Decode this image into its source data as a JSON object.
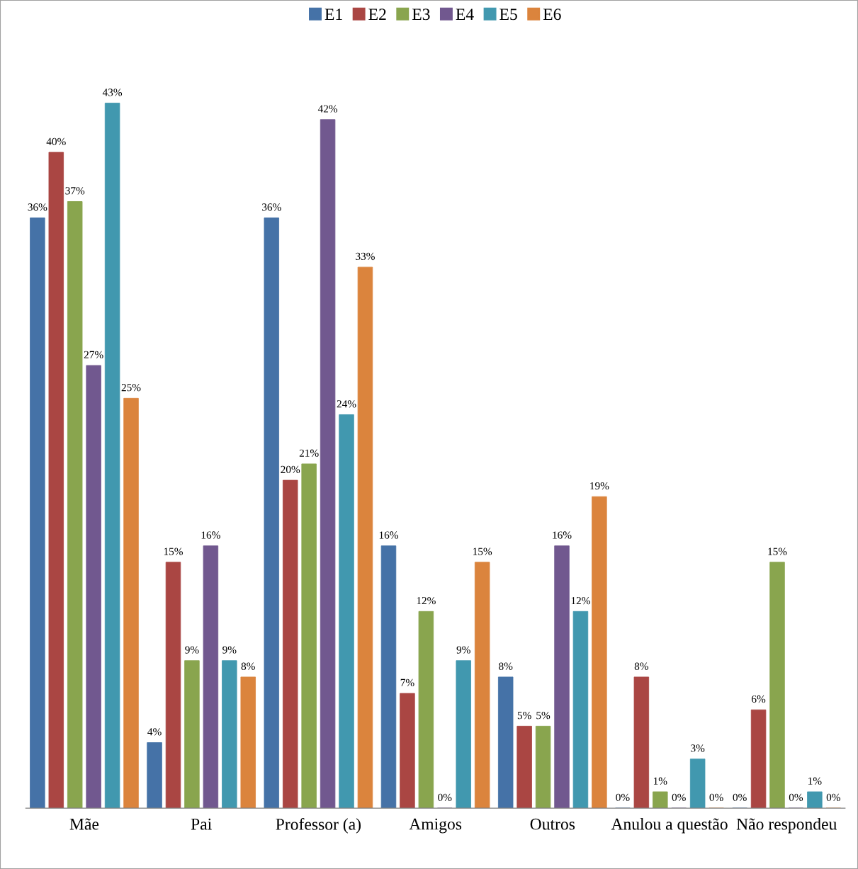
{
  "chart_data": {
    "type": "bar",
    "categories": [
      "Mãe",
      "Pai",
      "Professor (a)",
      "Amigos",
      "Outros",
      "Anulou a questão",
      "Não respondeu"
    ],
    "series": [
      {
        "name": "E1",
        "color": "#4572a7",
        "values": [
          36,
          4,
          36,
          16,
          8,
          0,
          0
        ],
        "value_labels": [
          "36%",
          "4%",
          "36%",
          "16%",
          "8%",
          "0%",
          "0%"
        ]
      },
      {
        "name": "E2",
        "color": "#aa4643",
        "values": [
          40,
          15,
          20,
          7,
          5,
          8,
          6
        ],
        "value_labels": [
          "40%",
          "15%",
          "20%",
          "7%",
          "5%",
          "8%",
          "6%"
        ]
      },
      {
        "name": "E3",
        "color": "#89a54e",
        "values": [
          37,
          9,
          21,
          12,
          5,
          1,
          15
        ],
        "value_labels": [
          "37%",
          "9%",
          "21%",
          "12%",
          "5%",
          "1%",
          "15%"
        ]
      },
      {
        "name": "E4",
        "color": "#71588f",
        "values": [
          27,
          16,
          42,
          0,
          16,
          0,
          0
        ],
        "value_labels": [
          "27%",
          "16%",
          "42%",
          "0%",
          "16%",
          "0%",
          "0%"
        ]
      },
      {
        "name": "E5",
        "color": "#4198af",
        "values": [
          43,
          9,
          24,
          9,
          12,
          3,
          1
        ],
        "value_labels": [
          "43%",
          "9%",
          "24%",
          "9%",
          "12%",
          "3%",
          "1%"
        ]
      },
      {
        "name": "E6",
        "color": "#db843d",
        "values": [
          25,
          8,
          33,
          15,
          19,
          0,
          0
        ],
        "value_labels": [
          "25%",
          "8%",
          "33%",
          "15%",
          "19%",
          "0%",
          "0%"
        ]
      }
    ],
    "legend": "top",
    "grid": false
  }
}
